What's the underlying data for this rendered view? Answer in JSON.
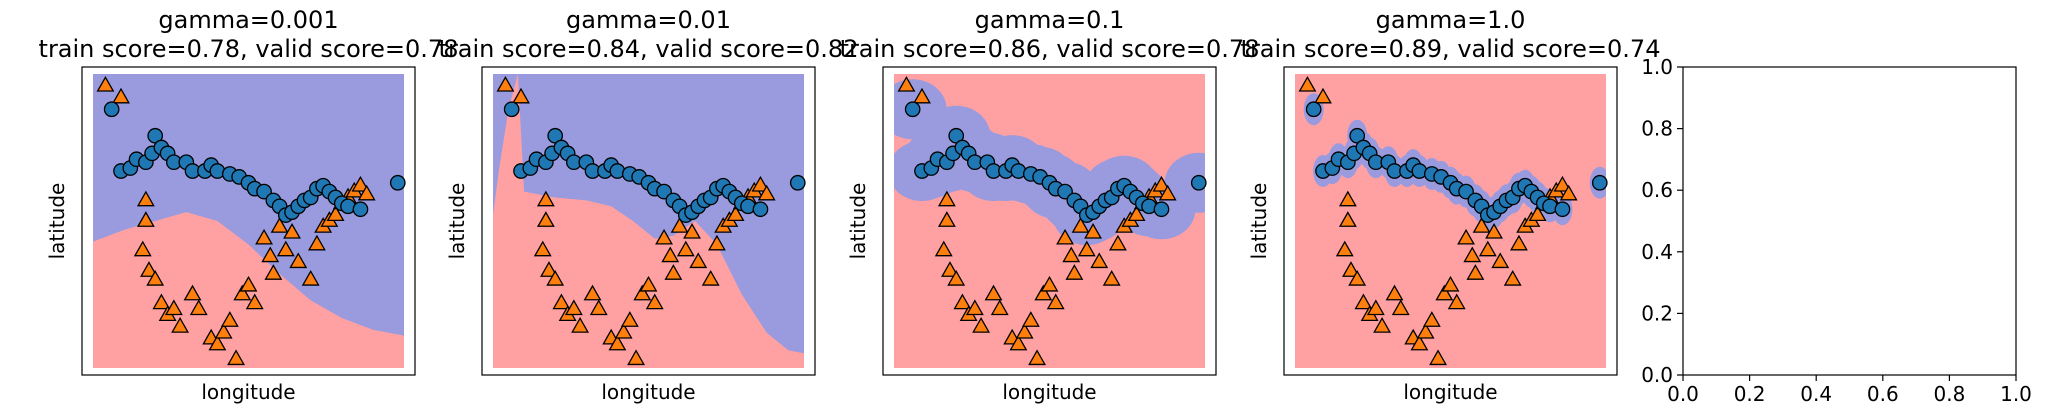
{
  "chart_data": [
    {
      "type": "scatter",
      "title": "gamma=0.001",
      "subtitle": "train score=0.78, valid score=0.78",
      "xlabel": "longitude",
      "ylabel": "latitude",
      "xlim": [
        0,
        1
      ],
      "ylim": [
        0,
        1
      ],
      "background_colors": {
        "class_0": "#9a9ade",
        "class_1": "#ffa1a3"
      },
      "decision_boundary": [
        [
          0.0,
          0.43
        ],
        [
          0.1,
          0.47
        ],
        [
          0.2,
          0.5
        ],
        [
          0.3,
          0.53
        ],
        [
          0.4,
          0.5
        ],
        [
          0.5,
          0.42
        ],
        [
          0.6,
          0.32
        ],
        [
          0.7,
          0.23
        ],
        [
          0.8,
          0.17
        ],
        [
          0.9,
          0.13
        ],
        [
          1.0,
          0.11
        ]
      ],
      "class_0_region": "above"
    },
    {
      "type": "scatter",
      "title": "gamma=0.01",
      "subtitle": "train score=0.84, valid score=0.82",
      "xlabel": "longitude",
      "ylabel": "latitude",
      "xlim": [
        0,
        1
      ],
      "ylim": [
        0,
        1
      ],
      "background_colors": {
        "class_0": "#9a9ade",
        "class_1": "#ffa1a3"
      },
      "decision_boundary": [
        [
          0.0,
          0.52
        ],
        [
          0.02,
          0.68
        ],
        [
          0.05,
          0.88
        ],
        [
          0.08,
          1.0
        ],
        [
          0.08,
          0.0
        ],
        [
          0.1,
          0.6
        ],
        [
          0.2,
          0.58
        ],
        [
          0.3,
          0.57
        ],
        [
          0.38,
          0.55
        ],
        [
          0.45,
          0.5
        ],
        [
          0.52,
          0.44
        ],
        [
          0.58,
          0.45
        ],
        [
          0.65,
          0.5
        ],
        [
          0.72,
          0.42
        ],
        [
          0.8,
          0.25
        ],
        [
          0.88,
          0.12
        ],
        [
          0.95,
          0.06
        ],
        [
          1.0,
          0.05
        ]
      ],
      "class_0_region": "above"
    },
    {
      "type": "scatter",
      "title": "gamma=0.1",
      "subtitle": "train score=0.86, valid score=0.78",
      "xlabel": "longitude",
      "ylabel": "latitude",
      "xlim": [
        0,
        1
      ],
      "ylim": [
        0,
        1
      ],
      "background_colors": {
        "class_0": "#9a9ade",
        "class_1": "#ffa1a3"
      },
      "class_0_region": "islands"
    },
    {
      "type": "scatter",
      "title": "gamma=1.0",
      "subtitle": "train score=0.89, valid score=0.74",
      "xlabel": "longitude",
      "ylabel": "latitude",
      "xlim": [
        0,
        1
      ],
      "ylim": [
        0,
        1
      ],
      "background_colors": {
        "class_0": "#9a9ade",
        "class_1": "#ffa1a3"
      },
      "class_0_region": "islands"
    },
    {
      "type": "scatter",
      "title": "",
      "subtitle": "",
      "xlabel": "",
      "ylabel": "",
      "xlim": [
        0,
        1
      ],
      "ylim": [
        0,
        1
      ],
      "xticks": [
        "0.0",
        "0.2",
        "0.4",
        "0.6",
        "0.8",
        "1.0"
      ],
      "yticks": [
        "0.0",
        "0.2",
        "0.4",
        "0.6",
        "0.8",
        "1.0"
      ],
      "empty": true
    }
  ],
  "series": {
    "class_0": {
      "marker": "circle",
      "color": "#1f77b4",
      "x": [
        0.06,
        0.09,
        0.12,
        0.14,
        0.17,
        0.19,
        0.2,
        0.22,
        0.24,
        0.26,
        0.3,
        0.32,
        0.36,
        0.38,
        0.4,
        0.44,
        0.47,
        0.5,
        0.52,
        0.55,
        0.58,
        0.6,
        0.62,
        0.64,
        0.66,
        0.68,
        0.7,
        0.72,
        0.74,
        0.76,
        0.78,
        0.8,
        0.82,
        0.86,
        0.98
      ],
      "y": [
        0.88,
        0.67,
        0.68,
        0.71,
        0.7,
        0.73,
        0.79,
        0.75,
        0.73,
        0.7,
        0.7,
        0.67,
        0.67,
        0.69,
        0.67,
        0.66,
        0.65,
        0.63,
        0.61,
        0.6,
        0.57,
        0.55,
        0.52,
        0.53,
        0.55,
        0.57,
        0.58,
        0.61,
        0.62,
        0.6,
        0.58,
        0.56,
        0.55,
        0.54,
        0.63
      ]
    },
    "class_1": {
      "marker": "triangle",
      "color": "#ff7f0e",
      "x": [
        0.04,
        0.09,
        0.17,
        0.17,
        0.16,
        0.18,
        0.2,
        0.22,
        0.24,
        0.26,
        0.28,
        0.32,
        0.34,
        0.38,
        0.4,
        0.42,
        0.44,
        0.46,
        0.48,
        0.5,
        0.52,
        0.55,
        0.57,
        0.58,
        0.6,
        0.62,
        0.64,
        0.66,
        0.7,
        0.72,
        0.74,
        0.76,
        0.78,
        0.8,
        0.82,
        0.84,
        0.86,
        0.88
      ],
      "y": [
        0.96,
        0.92,
        0.57,
        0.5,
        0.4,
        0.33,
        0.3,
        0.22,
        0.18,
        0.2,
        0.14,
        0.25,
        0.2,
        0.1,
        0.08,
        0.12,
        0.16,
        0.03,
        0.25,
        0.28,
        0.22,
        0.44,
        0.38,
        0.32,
        0.48,
        0.4,
        0.46,
        0.36,
        0.3,
        0.42,
        0.48,
        0.5,
        0.52,
        0.56,
        0.58,
        0.6,
        0.62,
        0.59
      ]
    }
  },
  "legend": "none"
}
